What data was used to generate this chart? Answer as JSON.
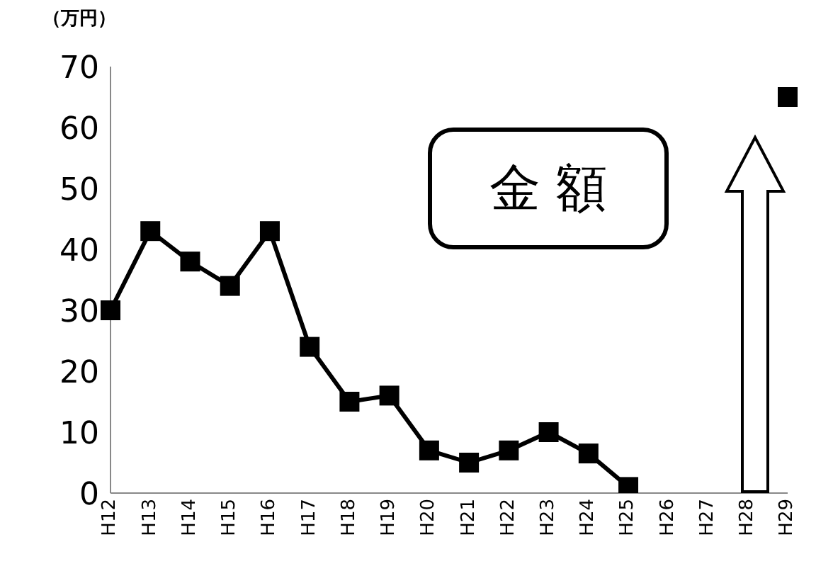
{
  "chart_data": {
    "type": "line",
    "ylabel": "（万円）",
    "categories": [
      "H12",
      "H13",
      "H14",
      "H15",
      "H16",
      "H17",
      "H18",
      "H19",
      "H20",
      "H21",
      "H22",
      "H23",
      "H24",
      "H25",
      "H26",
      "H27",
      "H28",
      "H29"
    ],
    "series": [
      {
        "color": "#000000",
        "values": [
          30,
          43,
          38,
          34,
          43,
          24,
          15,
          16,
          7,
          5,
          7,
          10,
          6.5,
          1,
          null,
          null,
          null,
          65
        ]
      }
    ],
    "ylim": [
      0,
      70
    ],
    "yticks": [
      0,
      10,
      20,
      30,
      40,
      50,
      60,
      70
    ],
    "grid": false,
    "legend": false,
    "marker": "square",
    "line_style": "solid",
    "annotations": [
      "金 額"
    ]
  }
}
